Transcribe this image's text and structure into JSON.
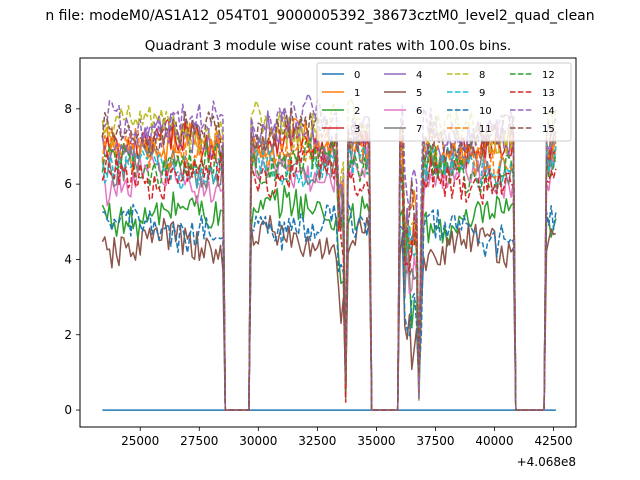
{
  "figure": {
    "suptitle": "n file: modeM0/AS1A12_054T01_9000005392_38673cztM0_level2_quad_clean",
    "title": "Quadrant 3 module wise count rates with 100.0s bins."
  },
  "chart_data": {
    "type": "line",
    "title": "Quadrant 3 module wise count rates with 100.0s bins.",
    "xlabel": "",
    "ylabel": "",
    "x_offset_label": "+4.068e8",
    "xlim": [
      22450,
      43450
    ],
    "ylim": [
      -0.45,
      9.35
    ],
    "xticks": [
      25000,
      27500,
      30000,
      32500,
      35000,
      37500,
      40000,
      42500
    ],
    "xtick_labels": [
      "25000",
      "27500",
      "30000",
      "32500",
      "35000",
      "37500",
      "40000",
      "42500"
    ],
    "yticks": [
      0,
      2,
      4,
      6,
      8
    ],
    "ytick_labels": [
      "0",
      "2",
      "4",
      "6",
      "8"
    ],
    "grid": false,
    "legend_location": "upper right",
    "x_start": 23400,
    "x_end": 42600,
    "x_step": 100,
    "zero_segments": [
      [
        28550,
        29650
      ],
      [
        34750,
        35950
      ],
      [
        40850,
        42150
      ]
    ],
    "gaps": [
      [
        33650,
        33750
      ],
      [
        36750,
        36850
      ]
    ],
    "series": [
      {
        "name": "0",
        "color": "#1f77b4",
        "dash": "solid",
        "block_levels": [
          0,
          0,
          0,
          0
        ]
      },
      {
        "name": "1",
        "color": "#ff7f0e",
        "dash": "solid",
        "block_levels": [
          7.0,
          7.1,
          6.9,
          7.0
        ]
      },
      {
        "name": "2",
        "color": "#2ca02c",
        "dash": "solid",
        "block_levels": [
          5.2,
          5.3,
          5.0,
          5.1
        ]
      },
      {
        "name": "3",
        "color": "#d62728",
        "dash": "solid",
        "block_levels": [
          7.1,
          7.0,
          6.8,
          6.9
        ]
      },
      {
        "name": "4",
        "color": "#9467bd",
        "dash": "solid",
        "block_levels": [
          7.2,
          7.3,
          7.1,
          7.2
        ]
      },
      {
        "name": "5",
        "color": "#8c564b",
        "dash": "solid",
        "block_levels": [
          4.4,
          4.5,
          4.3,
          4.4
        ]
      },
      {
        "name": "6",
        "color": "#e377c2",
        "dash": "solid",
        "block_levels": [
          6.1,
          6.3,
          6.2,
          6.2
        ]
      },
      {
        "name": "7",
        "color": "#7f7f7f",
        "dash": "solid",
        "block_levels": [
          6.5,
          6.6,
          6.5,
          6.6
        ]
      },
      {
        "name": "8",
        "color": "#bcbd22",
        "dash": "dashed",
        "block_levels": [
          7.5,
          7.6,
          7.4,
          7.5
        ]
      },
      {
        "name": "9",
        "color": "#17becf",
        "dash": "dashed",
        "block_levels": [
          6.4,
          6.5,
          6.4,
          6.5
        ]
      },
      {
        "name": "10",
        "color": "#1f77b4",
        "dash": "dashed",
        "block_levels": [
          4.8,
          4.9,
          4.7,
          4.8
        ]
      },
      {
        "name": "11",
        "color": "#ff7f0e",
        "dash": "dashed",
        "block_levels": [
          6.9,
          7.0,
          6.8,
          6.9
        ]
      },
      {
        "name": "12",
        "color": "#2ca02c",
        "dash": "dashed",
        "block_levels": [
          6.5,
          6.6,
          6.4,
          6.5
        ]
      },
      {
        "name": "13",
        "color": "#d62728",
        "dash": "dashed",
        "block_levels": [
          6.2,
          6.3,
          6.1,
          6.2
        ]
      },
      {
        "name": "14",
        "color": "#9467bd",
        "dash": "dashed",
        "block_levels": [
          7.6,
          7.7,
          7.5,
          7.6
        ]
      },
      {
        "name": "15",
        "color": "#8c564b",
        "dash": "dashed",
        "block_levels": [
          7.3,
          7.4,
          7.2,
          7.3
        ]
      }
    ]
  }
}
